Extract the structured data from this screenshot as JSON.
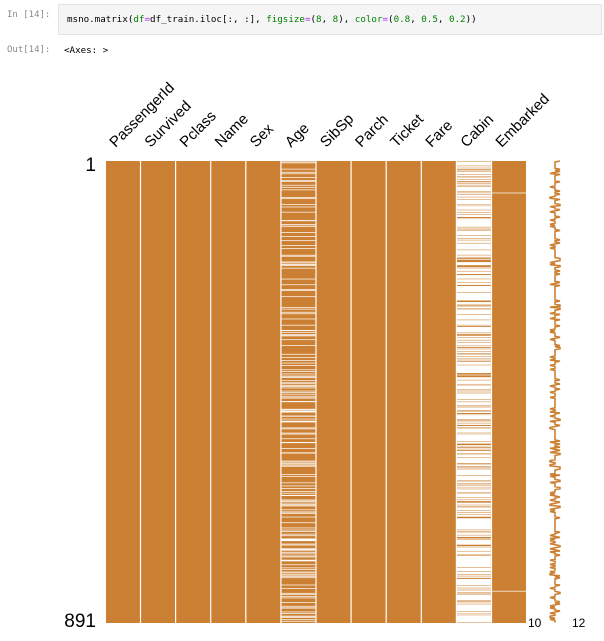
{
  "cell_in": {
    "prompt": "In [14]:",
    "code": {
      "fn": "msno.matrix",
      "p1": "(",
      "kw1": "df",
      "eq1": "=",
      "arg1": "df_train.iloc[:, :], ",
      "kw2": "figsize",
      "eq2": "=",
      "p2": "(",
      "n1": "8",
      "sep1": ", ",
      "n2": "8",
      "p3": "), ",
      "kw3": "color",
      "eq3": "=",
      "p4": "(",
      "n3": "0.8",
      "sep2": ", ",
      "n4": "0.5",
      "sep3": ", ",
      "n5": "0.2",
      "p5": "))"
    }
  },
  "cell_out": {
    "prompt": "Out[14]:",
    "text": "<Axes: >"
  },
  "chart_data": {
    "type": "heatmap",
    "title": "",
    "columns": [
      "PassengerId",
      "Survived",
      "Pclass",
      "Name",
      "Sex",
      "Age",
      "SibSp",
      "Parch",
      "Ticket",
      "Fare",
      "Cabin",
      "Embarked"
    ],
    "rows": 891,
    "y_tick_labels": [
      "1",
      "891"
    ],
    "present_counts": [
      891,
      891,
      891,
      891,
      891,
      714,
      891,
      891,
      891,
      891,
      204,
      889
    ],
    "present_color": "#cc8033",
    "missing_color": "#ffffff",
    "sparkline": {
      "min_label": "10",
      "max_label": "12",
      "min_value": 10,
      "max_value": 12
    }
  }
}
